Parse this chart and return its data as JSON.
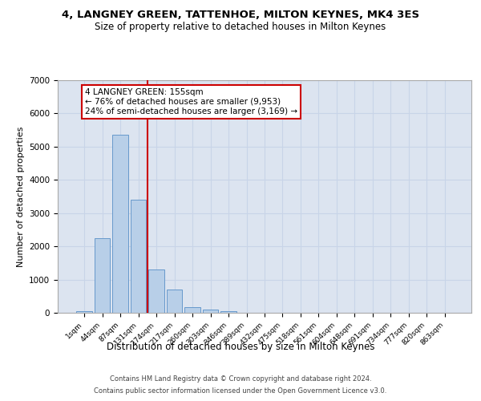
{
  "title": "4, LANGNEY GREEN, TATTENHOE, MILTON KEYNES, MK4 3ES",
  "subtitle": "Size of property relative to detached houses in Milton Keynes",
  "xlabel": "Distribution of detached houses by size in Milton Keynes",
  "ylabel": "Number of detached properties",
  "bar_labels": [
    "1sqm",
    "44sqm",
    "87sqm",
    "131sqm",
    "174sqm",
    "217sqm",
    "260sqm",
    "303sqm",
    "346sqm",
    "389sqm",
    "432sqm",
    "475sqm",
    "518sqm",
    "561sqm",
    "604sqm",
    "648sqm",
    "691sqm",
    "734sqm",
    "777sqm",
    "820sqm",
    "863sqm"
  ],
  "bar_values": [
    50,
    2250,
    5350,
    3400,
    1300,
    700,
    175,
    90,
    50,
    0,
    0,
    0,
    0,
    0,
    0,
    0,
    0,
    0,
    0,
    0,
    0
  ],
  "bar_color": "#b8cfe8",
  "bar_edge_color": "#6699cc",
  "vline_color": "#cc0000",
  "annotation_title": "4 LANGNEY GREEN: 155sqm",
  "annotation_line1": "← 76% of detached houses are smaller (9,953)",
  "annotation_line2": "24% of semi-detached houses are larger (3,169) →",
  "annotation_box_facecolor": "white",
  "annotation_box_edgecolor": "#cc0000",
  "ylim": [
    0,
    7000
  ],
  "yticks": [
    0,
    1000,
    2000,
    3000,
    4000,
    5000,
    6000,
    7000
  ],
  "grid_color": "#c8d4e8",
  "background_color": "#dce4f0",
  "footer_line1": "Contains HM Land Registry data © Crown copyright and database right 2024.",
  "footer_line2": "Contains public sector information licensed under the Open Government Licence v3.0."
}
